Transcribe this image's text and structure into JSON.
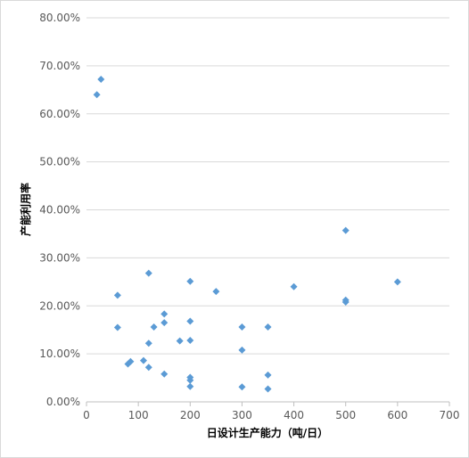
{
  "chart_data": {
    "type": "scatter",
    "title": "",
    "xlabel": "日设计生产能力（吨/日）",
    "ylabel": "产能利用率",
    "xlim": [
      0,
      700
    ],
    "ylim": [
      0,
      0.8
    ],
    "x_ticks": [
      "0",
      "100",
      "200",
      "300",
      "400",
      "500",
      "600",
      "700"
    ],
    "y_ticks": [
      "0.00%",
      "10.00%",
      "20.00%",
      "30.00%",
      "40.00%",
      "50.00%",
      "60.00%",
      "70.00%",
      "80.00%"
    ],
    "grid": "horizontal",
    "legend": "none",
    "marker_color": "#5b9bd5",
    "points": [
      {
        "x": 20,
        "y": 0.64
      },
      {
        "x": 28,
        "y": 0.672
      },
      {
        "x": 60,
        "y": 0.222
      },
      {
        "x": 60,
        "y": 0.155
      },
      {
        "x": 80,
        "y": 0.079
      },
      {
        "x": 85,
        "y": 0.084
      },
      {
        "x": 110,
        "y": 0.086
      },
      {
        "x": 120,
        "y": 0.268
      },
      {
        "x": 120,
        "y": 0.122
      },
      {
        "x": 120,
        "y": 0.072
      },
      {
        "x": 130,
        "y": 0.156
      },
      {
        "x": 150,
        "y": 0.183
      },
      {
        "x": 150,
        "y": 0.165
      },
      {
        "x": 150,
        "y": 0.058
      },
      {
        "x": 180,
        "y": 0.127
      },
      {
        "x": 200,
        "y": 0.251
      },
      {
        "x": 200,
        "y": 0.168
      },
      {
        "x": 200,
        "y": 0.128
      },
      {
        "x": 200,
        "y": 0.051
      },
      {
        "x": 200,
        "y": 0.045
      },
      {
        "x": 200,
        "y": 0.032
      },
      {
        "x": 250,
        "y": 0.23
      },
      {
        "x": 300,
        "y": 0.156
      },
      {
        "x": 300,
        "y": 0.108
      },
      {
        "x": 300,
        "y": 0.031
      },
      {
        "x": 350,
        "y": 0.156
      },
      {
        "x": 350,
        "y": 0.056
      },
      {
        "x": 350,
        "y": 0.027
      },
      {
        "x": 400,
        "y": 0.24
      },
      {
        "x": 500,
        "y": 0.357
      },
      {
        "x": 500,
        "y": 0.212
      },
      {
        "x": 500,
        "y": 0.208
      },
      {
        "x": 600,
        "y": 0.25
      }
    ]
  }
}
